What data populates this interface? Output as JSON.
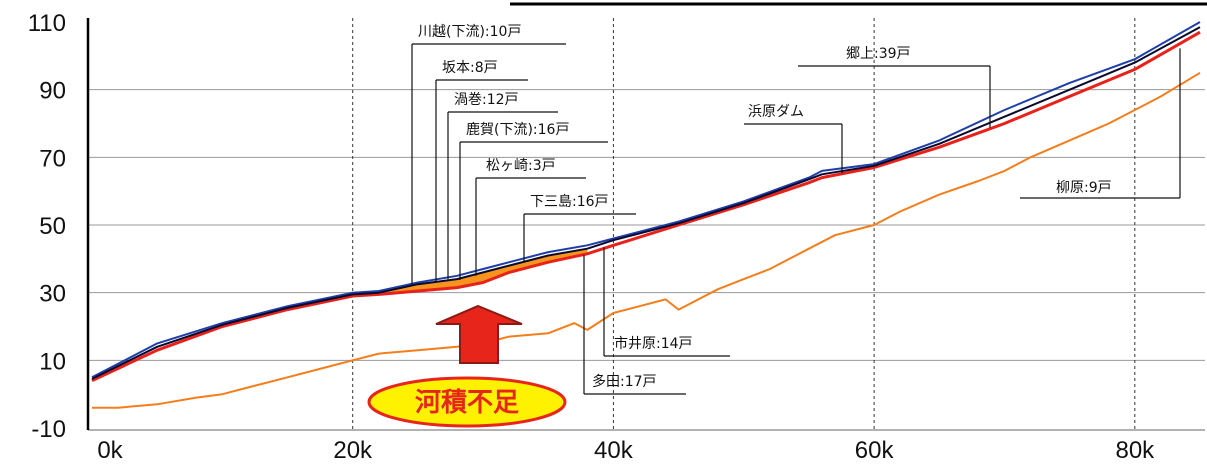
{
  "chart_data": {
    "type": "line",
    "xlim": [
      0,
      85
    ],
    "ylim": [
      -10,
      110
    ],
    "xticks": [
      {
        "v": 0,
        "label": "0k"
      },
      {
        "v": 20,
        "label": "20k"
      },
      {
        "v": 40,
        "label": "40k"
      },
      {
        "v": 60,
        "label": "60k"
      },
      {
        "v": 80,
        "label": "80k"
      }
    ],
    "yticks": [
      {
        "v": 110,
        "label": "110"
      },
      {
        "v": 90,
        "label": "90"
      },
      {
        "v": 70,
        "label": "70"
      },
      {
        "v": 50,
        "label": "50"
      },
      {
        "v": 30,
        "label": "30"
      },
      {
        "v": 10,
        "label": "10"
      },
      {
        "v": -10,
        "label": "-10"
      }
    ],
    "grid": {
      "vertical": "dotted",
      "horizontal": "solid"
    },
    "series": [
      {
        "color": "#1f3fa8",
        "x": [
          0,
          5,
          10,
          15,
          20,
          22,
          25,
          28,
          30,
          32,
          35,
          38,
          40,
          45,
          50,
          55,
          56,
          60,
          65,
          70,
          75,
          80,
          85
        ],
        "y": [
          5,
          15,
          21,
          26,
          30,
          30.5,
          33,
          35,
          37,
          39,
          42,
          44,
          46,
          51,
          57,
          64,
          66,
          68,
          75,
          84,
          92,
          99,
          110
        ]
      },
      {
        "color": "#0a0a2e",
        "x": [
          0,
          5,
          10,
          15,
          20,
          22,
          25,
          28,
          30,
          32,
          35,
          38,
          40,
          45,
          50,
          55,
          56,
          60,
          65,
          70,
          75,
          80,
          85
        ],
        "y": [
          4.5,
          14,
          20.5,
          25.5,
          29.5,
          30,
          32.5,
          34,
          36,
          38,
          41,
          43,
          45.5,
          50.5,
          56.5,
          63.5,
          65,
          67.5,
          74,
          82,
          90,
          98,
          108.5
        ]
      },
      {
        "color": "#e8221a",
        "x": [
          0,
          5,
          10,
          15,
          20,
          22,
          25,
          28,
          30,
          32,
          35,
          38,
          40,
          45,
          50,
          55,
          56,
          60,
          65,
          70,
          75,
          80,
          85
        ],
        "y": [
          4,
          13,
          20,
          25,
          29,
          29.5,
          30.5,
          31.5,
          33,
          36,
          39,
          41.5,
          44,
          50,
          56,
          62.5,
          64,
          67,
          73,
          80,
          88,
          96,
          107
        ]
      },
      {
        "color": "#f47e1b",
        "x": [
          0,
          2,
          5,
          8,
          10,
          12,
          15,
          18,
          20,
          22,
          25,
          28,
          30,
          32,
          35,
          37,
          38,
          40,
          42,
          44,
          45,
          48,
          50,
          52,
          55,
          57,
          60,
          62,
          65,
          68,
          70,
          72,
          75,
          78,
          80,
          82,
          85
        ],
        "y": [
          -4,
          -4,
          -3,
          -1,
          0,
          2,
          5,
          8,
          10,
          12,
          13,
          14,
          15,
          17,
          18,
          21,
          19,
          24,
          26,
          28,
          25,
          31,
          34,
          37,
          43,
          47,
          50,
          54,
          59,
          63,
          66,
          70,
          75,
          80,
          84,
          88,
          95
        ]
      }
    ],
    "annotations": [
      {
        "label": "川越(下流):10戸",
        "x": 24
      },
      {
        "label": "坂本:8戸",
        "x": 26
      },
      {
        "label": "渦巻:12戸",
        "x": 26.5
      },
      {
        "label": "鹿賀(下流):16戸",
        "x": 27.5
      },
      {
        "label": "松ヶ崎:3戸",
        "x": 29
      },
      {
        "label": "下三島:16戸",
        "x": 33
      },
      {
        "label": "市井原:14戸",
        "x": 39.5
      },
      {
        "label": "多田:17戸",
        "x": 37.5
      },
      {
        "label": "浜原ダム",
        "x": 56.5
      },
      {
        "label": "郷上:39戸",
        "x": 68
      },
      {
        "label": "柳原:9戸",
        "x": 82
      }
    ],
    "highlight": {
      "label": "河積不足",
      "color": "#e8251a",
      "badge_fill": "#fff200"
    }
  }
}
